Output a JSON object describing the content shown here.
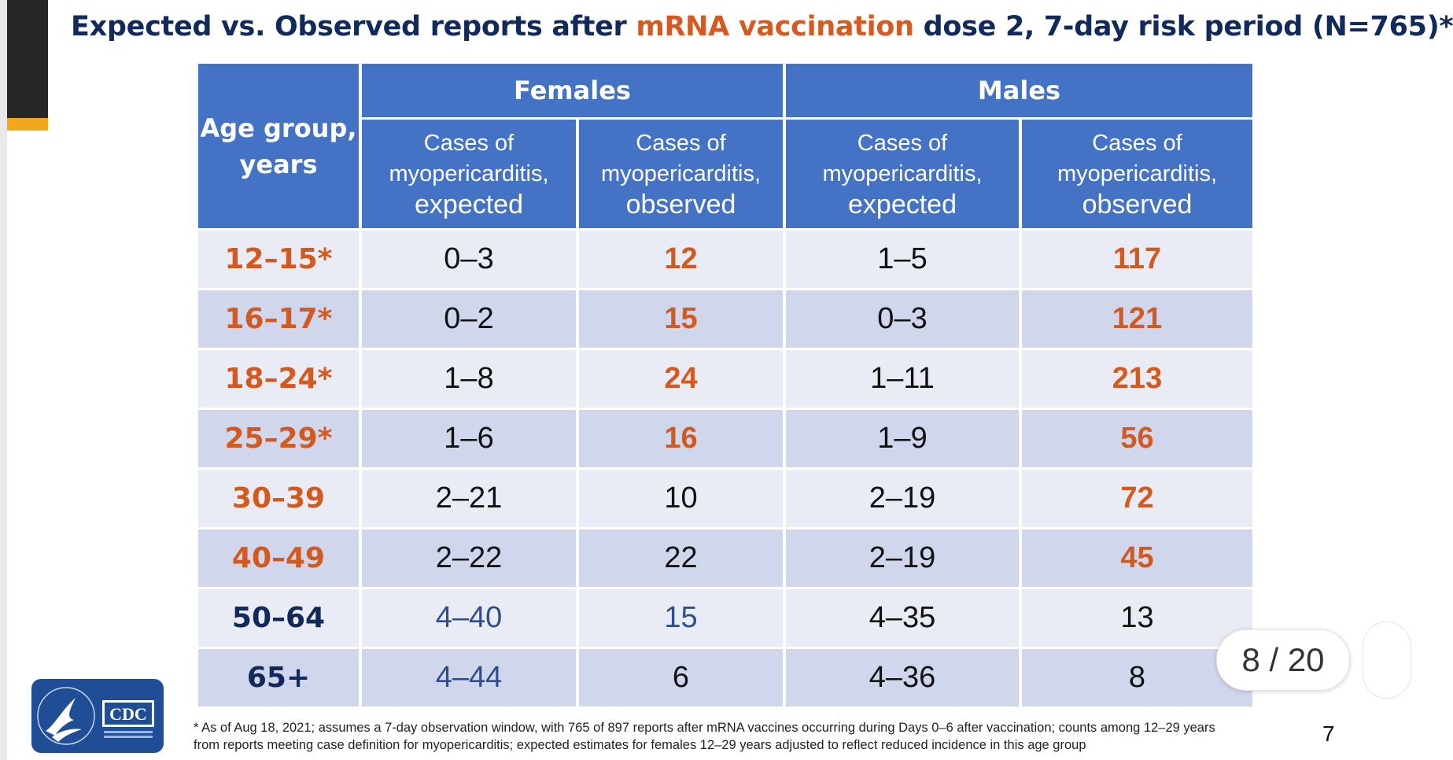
{
  "slide": {
    "title_parts": [
      "Expected vs. Observed reports after ",
      "mRNA vaccination",
      " dose 2, 7-day risk period (N=765)*"
    ],
    "title_highlight_color": "#d65a1f",
    "page_number": "7",
    "footnote_lines": [
      "* As of Aug 18, 2021; assumes a 7-day observation window, with 765 of 897 reports after mRNA vaccines occurring during Days 0–6 after vaccination; counts among 12–29 years",
      "from reports meeting case definition for myopericarditis; expected estimates for females 12–29 years adjusted to reflect reduced incidence in this age group"
    ]
  },
  "viewer": {
    "pager_text": "8 / 20"
  },
  "logo": {
    "text": "CDC"
  },
  "table": {
    "age_header_lines": [
      "Age group,",
      "years"
    ],
    "group_headers": [
      "Females",
      "Males"
    ],
    "sub_headers": [
      {
        "line1": "Cases of",
        "line2": "myopericarditis,",
        "line3": "expected"
      },
      {
        "line1": "Cases of",
        "line2": "myopericarditis,",
        "line3": "observed"
      },
      {
        "line1": "Cases of",
        "line2": "myopericarditis,",
        "line3": "expected"
      },
      {
        "line1": "Cases of",
        "line2": "myopericarditis,",
        "line3": "observed"
      }
    ],
    "rows": [
      {
        "age": "12–15*",
        "f_exp": "0–3",
        "f_obs": "12",
        "m_exp": "1–5",
        "m_obs": "117"
      },
      {
        "age": "16–17*",
        "f_exp": "0–2",
        "f_obs": "15",
        "m_exp": "0–3",
        "m_obs": "121"
      },
      {
        "age": "18–24*",
        "f_exp": "1–8",
        "f_obs": "24",
        "m_exp": "1–11",
        "m_obs": "213"
      },
      {
        "age": "25–29*",
        "f_exp": "1–6",
        "f_obs": "16",
        "m_exp": "1–9",
        "m_obs": "56"
      },
      {
        "age": "30–39",
        "f_exp": "2–21",
        "f_obs": "10",
        "m_exp": "2–19",
        "m_obs": "72"
      },
      {
        "age": "40–49",
        "f_exp": "2–22",
        "f_obs": "22",
        "m_exp": "2–19",
        "m_obs": "45"
      },
      {
        "age": "50–64",
        "f_exp": "4–40",
        "f_obs": "15",
        "m_exp": "4–35",
        "m_obs": "13"
      },
      {
        "age": "65+",
        "f_exp": "4–44",
        "f_obs": "6",
        "m_exp": "4–36",
        "m_obs": "8"
      }
    ],
    "colors": {
      "header_bg": "#4472c4",
      "row_light": "#e9ebf5",
      "row_dark": "#d0d6ec",
      "highlight": "#d4591e",
      "navy": "#102a5c"
    }
  }
}
